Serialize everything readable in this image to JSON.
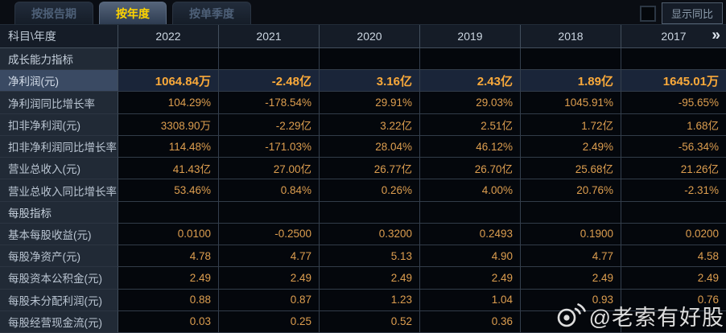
{
  "tabs": [
    {
      "label": "按报告期",
      "active": false
    },
    {
      "label": "按年度",
      "active": true
    },
    {
      "label": "按单季度",
      "active": false
    }
  ],
  "controls": {
    "show_yoy_label": "显示同比",
    "checkbox_checked": false
  },
  "table": {
    "corner_label": "科目\\年度",
    "years": [
      "2022",
      "2021",
      "2020",
      "2019",
      "2018",
      "2017"
    ],
    "more_icon": "»",
    "rows": [
      {
        "label": "成长能力指标",
        "type": "section",
        "values": [
          "",
          "",
          "",
          "",
          "",
          ""
        ]
      },
      {
        "label": "净利润(元)",
        "type": "highlight",
        "values": [
          "1064.84万",
          "-2.48亿",
          "3.16亿",
          "2.43亿",
          "1.89亿",
          "1645.01万"
        ]
      },
      {
        "label": "净利润同比增长率",
        "type": "data",
        "values": [
          "104.29%",
          "-178.54%",
          "29.91%",
          "29.03%",
          "1045.91%",
          "-95.65%"
        ]
      },
      {
        "label": "扣非净利润(元)",
        "type": "data",
        "values": [
          "3308.90万",
          "-2.29亿",
          "3.22亿",
          "2.51亿",
          "1.72亿",
          "1.68亿"
        ]
      },
      {
        "label": "扣非净利润同比增长率",
        "type": "data",
        "values": [
          "114.48%",
          "-171.03%",
          "28.04%",
          "46.12%",
          "2.49%",
          "-56.34%"
        ]
      },
      {
        "label": "营业总收入(元)",
        "type": "data",
        "values": [
          "41.43亿",
          "27.00亿",
          "26.77亿",
          "26.70亿",
          "25.68亿",
          "21.26亿"
        ]
      },
      {
        "label": "营业总收入同比增长率",
        "type": "data",
        "values": [
          "53.46%",
          "0.84%",
          "0.26%",
          "4.00%",
          "20.76%",
          "-2.31%"
        ]
      },
      {
        "label": "每股指标",
        "type": "section",
        "values": [
          "",
          "",
          "",
          "",
          "",
          ""
        ]
      },
      {
        "label": "基本每股收益(元)",
        "type": "data",
        "values": [
          "0.0100",
          "-0.2500",
          "0.3200",
          "0.2493",
          "0.1900",
          "0.0200"
        ]
      },
      {
        "label": "每股净资产(元)",
        "type": "data",
        "values": [
          "4.78",
          "4.77",
          "5.13",
          "4.90",
          "4.77",
          "4.58"
        ]
      },
      {
        "label": "每股资本公积金(元)",
        "type": "data",
        "values": [
          "2.49",
          "2.49",
          "2.49",
          "2.49",
          "2.49",
          "2.49"
        ]
      },
      {
        "label": "每股未分配利润(元)",
        "type": "data",
        "values": [
          "0.88",
          "0.87",
          "1.23",
          "1.04",
          "0.93",
          "0.76"
        ]
      },
      {
        "label": "每股经营现金流(元)",
        "type": "data",
        "values": [
          "0.03",
          "0.25",
          "0.52",
          "0.36",
          "",
          ""
        ]
      }
    ]
  },
  "watermark": {
    "text": "@老索有好股",
    "icon": "weibo-icon"
  },
  "colors": {
    "active_tab_text": "#ffd400",
    "value_text": "#dd9e4f",
    "highlight_value_text": "#fbaa3a",
    "highlight_row_bg": "#1a2539",
    "label_cell_bg": "#212a36",
    "page_bg": "#070a10"
  }
}
